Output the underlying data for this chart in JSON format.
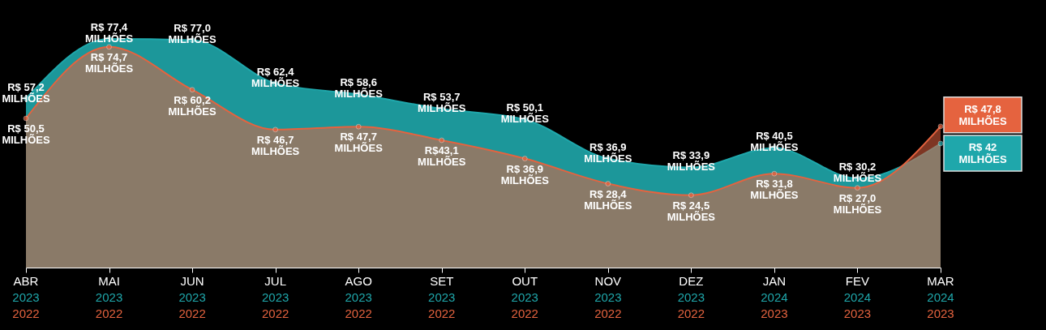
{
  "chart_data": {
    "type": "area",
    "categories": [
      "ABR\n2023\n2022",
      "MAI\n2023\n2022",
      "JUN\n2023\n2022",
      "JUL\n2023\n2022",
      "AGO\n2023\n2022",
      "SET\n2023\n2022",
      "OUT\n2023\n2022",
      "NOV\n2023\n2022",
      "DEZ\n2023\n2022",
      "JAN\n2024\n2023",
      "FEV\n2024\n2023",
      "MAR\n2024\n2023"
    ],
    "series": [
      {
        "color": "#1fa7ab",
        "values": [
          57.2,
          77.4,
          77.0,
          62.4,
          58.6,
          53.7,
          50.1,
          36.9,
          33.9,
          40.5,
          30.2,
          42
        ],
        "value_labels": [
          "R$ 57,2 MILHÕES",
          "R$ 77,4 MILHÕES",
          "R$ 77,0 MILHÕES",
          "R$ 62,4 MILHÕES",
          "R$ 58,6 MILHÕES",
          "R$ 53,7 MILHÕES",
          "R$ 50,1 MILHÕES",
          "R$ 36,9 MILHÕES",
          "R$ 33,9 MILHÕES",
          "R$ 40,5 MILHÕES",
          "R$ 30,2 MILHÕES",
          "R$ 42 MILHÕES"
        ]
      },
      {
        "color": "#e5633f",
        "values": [
          50.5,
          74.7,
          60.2,
          46.7,
          47.7,
          43.1,
          36.9,
          28.4,
          24.5,
          31.8,
          27.0,
          47.8
        ],
        "value_labels": [
          "R$ 50,5 MILHÕES",
          "R$ 74,7 MILHÕES",
          "R$ 60,2 MILHÕES",
          "R$ 46,7 MILHÕES",
          "R$ 47,7 MILHÕES",
          "R$43,1 MILHÕES",
          "R$ 36,9 MILHÕES",
          "R$ 28,4 MILHÕES",
          "R$ 24,5 MILHÕES",
          "R$ 31,8 MILHÕES",
          "R$ 27,0 MILHÕES",
          "R$ 47,8 MILHÕES"
        ]
      }
    ],
    "legend": false,
    "grid": false,
    "marker": "circle"
  }
}
